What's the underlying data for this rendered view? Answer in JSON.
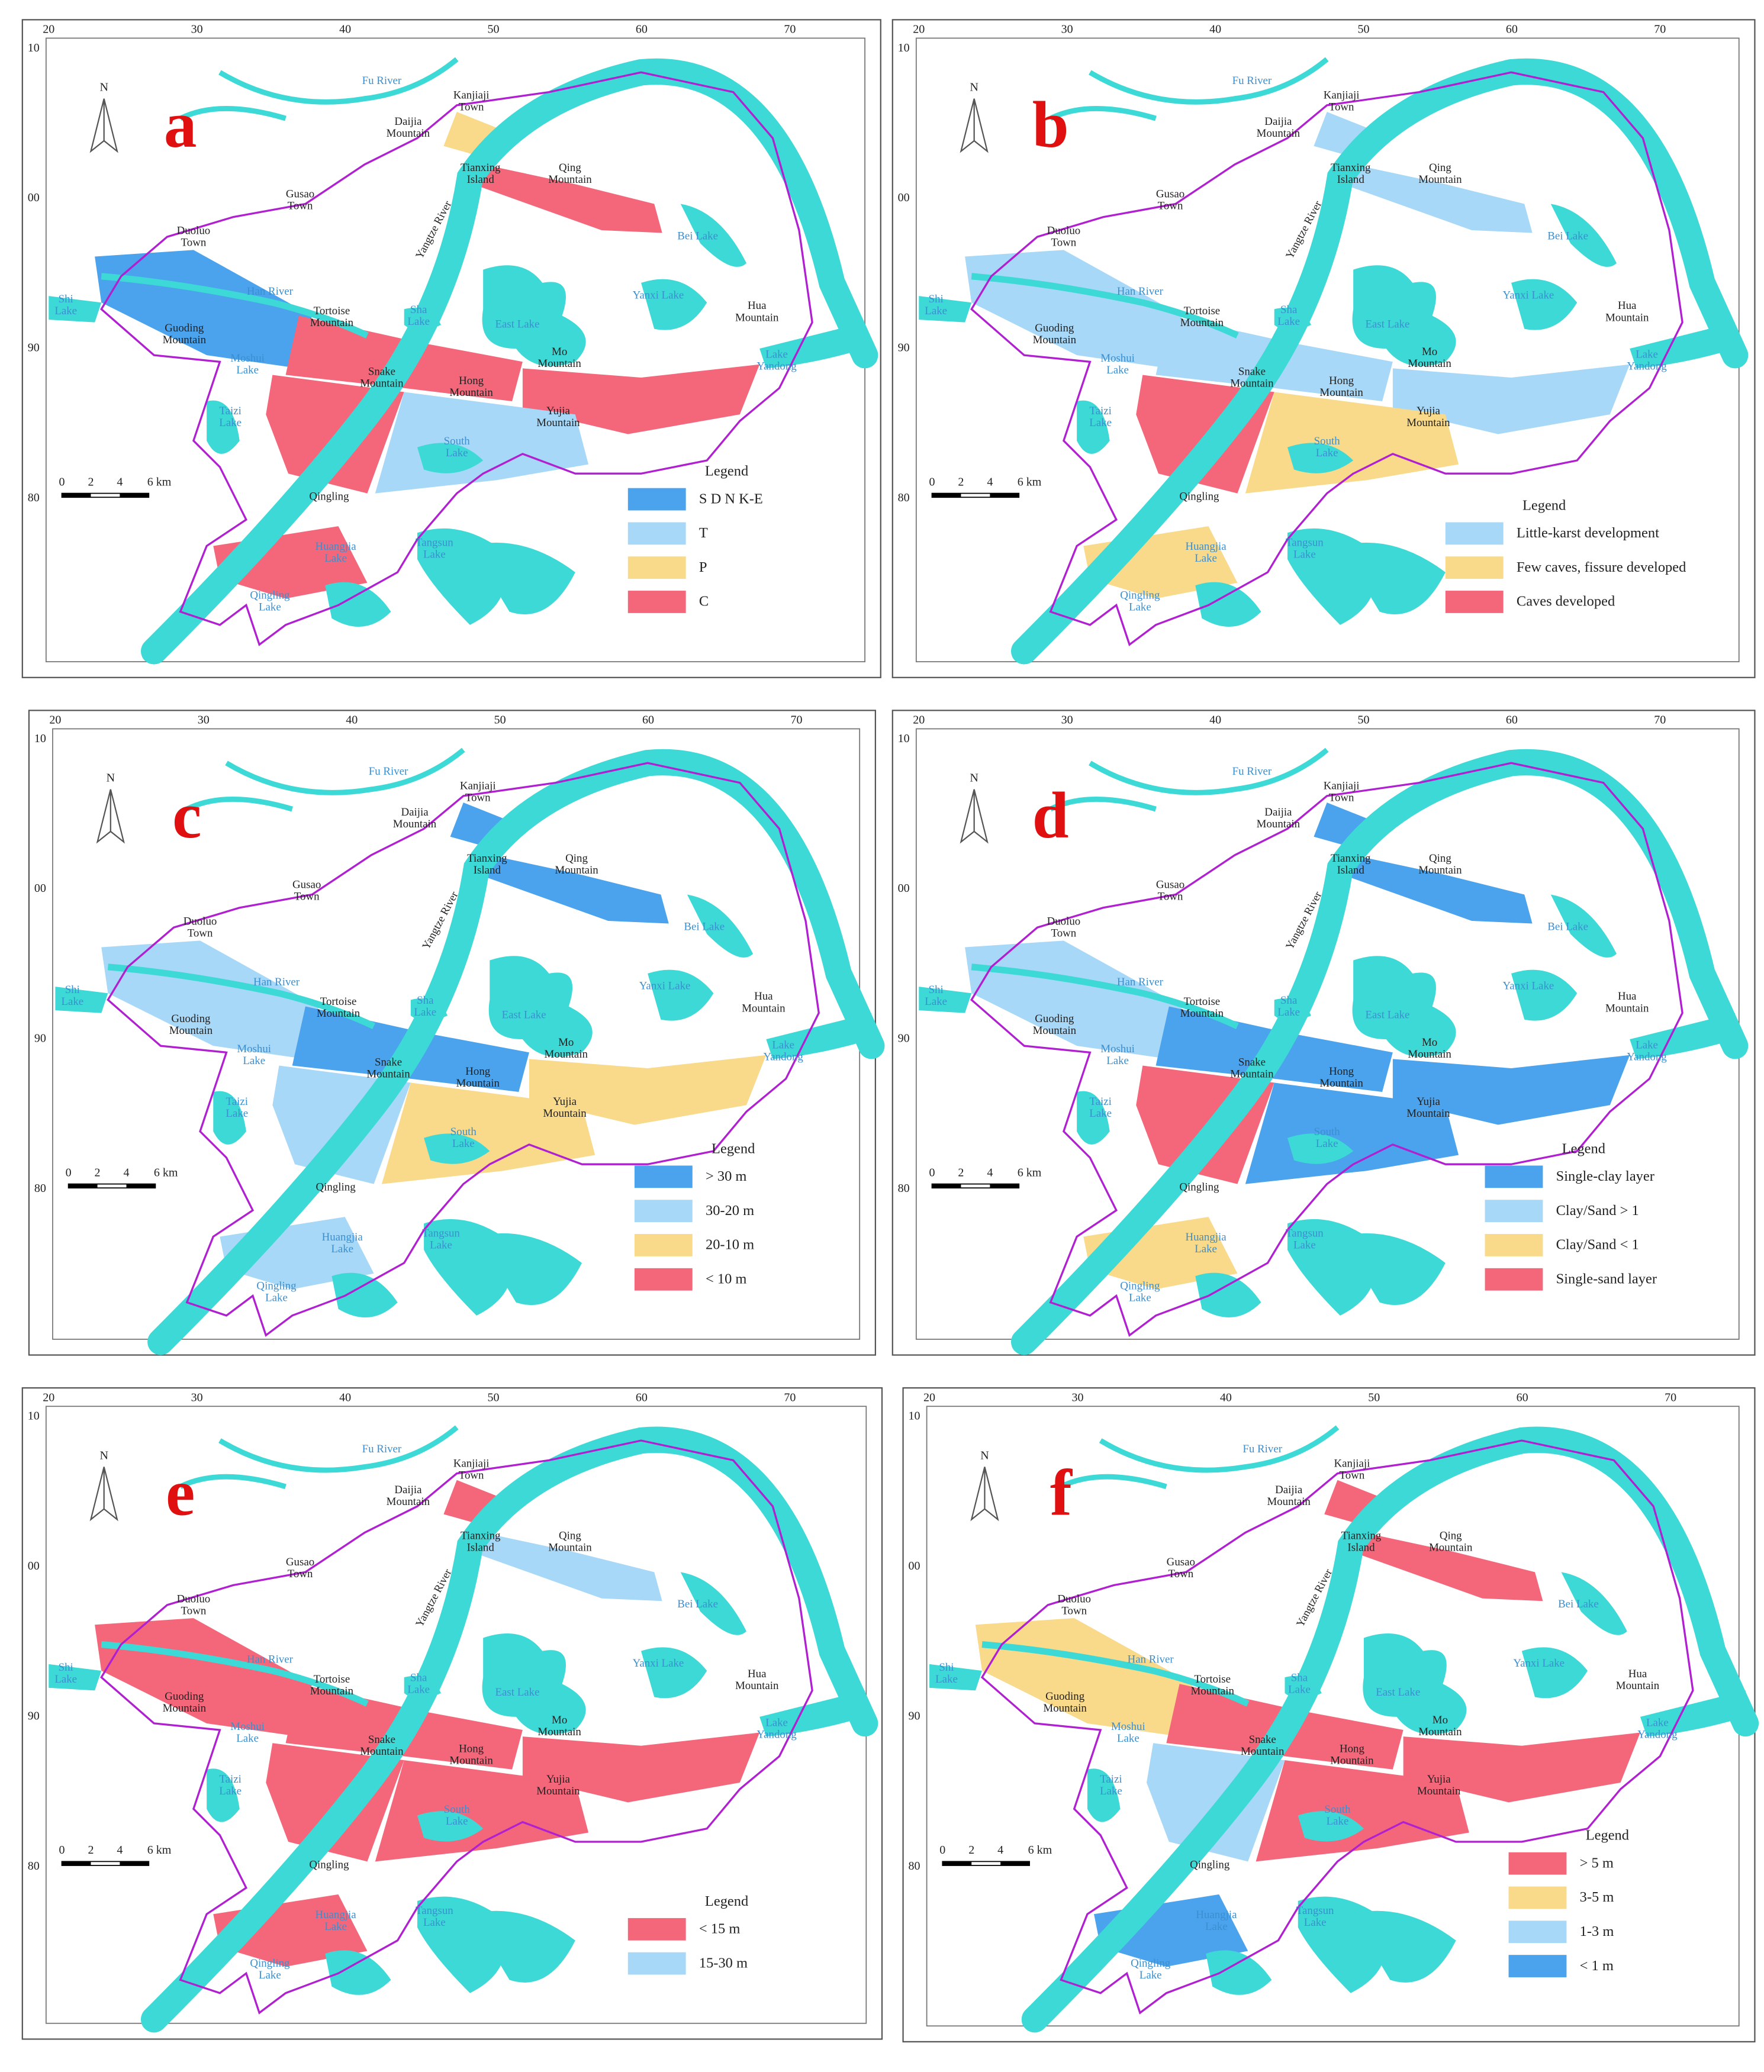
{
  "panels": [
    {
      "letter": "a",
      "legend": {
        "title": "Legend",
        "items": [
          {
            "label": "S D N K-E",
            "color": "#4aa3ec"
          },
          {
            "label": "T",
            "color": "#a8d8f8"
          },
          {
            "label": "P",
            "color": "#f9d98a"
          },
          {
            "label": "C",
            "color": "#f4677a"
          }
        ]
      }
    },
    {
      "letter": "b",
      "legend": {
        "title": "Legend",
        "items": [
          {
            "label": "Little-karst development",
            "color": "#a8d8f8"
          },
          {
            "label": "Few caves, fissure developed",
            "color": "#f9d98a"
          },
          {
            "label": "Caves developed",
            "color": "#f4677a"
          }
        ]
      }
    },
    {
      "letter": "c",
      "legend": {
        "title": "Legend",
        "items": [
          {
            "label": "> 30 m",
            "color": "#4aa3ec"
          },
          {
            "label": "30-20 m",
            "color": "#a8d8f8"
          },
          {
            "label": "20-10 m",
            "color": "#f9d98a"
          },
          {
            "label": "< 10 m",
            "color": "#f4677a"
          }
        ]
      }
    },
    {
      "letter": "d",
      "legend": {
        "title": "Legend",
        "items": [
          {
            "label": "Single-clay layer",
            "color": "#4aa3ec"
          },
          {
            "label": "Clay/Sand > 1",
            "color": "#a8d8f8"
          },
          {
            "label": "Clay/Sand < 1",
            "color": "#f9d98a"
          },
          {
            "label": "Single-sand layer",
            "color": "#f4677a"
          }
        ]
      }
    },
    {
      "letter": "e",
      "legend": {
        "title": "Legend",
        "items": [
          {
            "label": "< 15 m",
            "color": "#f4677a"
          },
          {
            "label": "15-30 m",
            "color": "#a8d8f8"
          }
        ]
      }
    },
    {
      "letter": "f",
      "legend": {
        "title": "Legend",
        "items": [
          {
            "label": "> 5 m",
            "color": "#f4677a"
          },
          {
            "label": "3-5 m",
            "color": "#f9d98a"
          },
          {
            "label": "1-3 m",
            "color": "#a8d8f8"
          },
          {
            "label": "< 1 m",
            "color": "#4aa3ec"
          }
        ]
      }
    }
  ],
  "map": {
    "north": "N",
    "xticks": [
      "20",
      "30",
      "40",
      "50",
      "60",
      "70"
    ],
    "yticks": [
      "10",
      "00",
      "90",
      "80"
    ],
    "scale": [
      "0",
      "2",
      "4",
      "6 km"
    ],
    "river": "Yangtze River",
    "places": [
      [
        "Fu River"
      ],
      [
        "Kanjiaji",
        "Town"
      ],
      [
        "Daijia",
        "Mountain"
      ],
      [
        "Tianxing",
        "Island"
      ],
      [
        "Qing",
        "Mountain"
      ],
      [
        "Gusao",
        "Town"
      ],
      [
        "Duoluo",
        "Town"
      ],
      [
        "Han River"
      ],
      [
        "Tortoise",
        "Mountain"
      ],
      [
        "Guoding",
        "Mountain"
      ],
      [
        "Shi",
        "Lake"
      ],
      [
        "Sha",
        "Lake"
      ],
      [
        "East Lake"
      ],
      [
        "Yanxi Lake"
      ],
      [
        "Hua",
        "Mountain"
      ],
      [
        "Bei Lake"
      ],
      [
        "Mo",
        "Mountain"
      ],
      [
        "Moshui",
        "Lake"
      ],
      [
        "Snake",
        "Mountain"
      ],
      [
        "Hong",
        "Mountain"
      ],
      [
        "Lake",
        "Yandong"
      ],
      [
        "Yujia",
        "Mountain"
      ],
      [
        "Taizi",
        "Lake"
      ],
      [
        "South",
        "Lake"
      ],
      [
        "Qingling"
      ],
      [
        "Tangsun",
        "Lake"
      ],
      [
        "Huangjia",
        "Lake"
      ],
      [
        "Qingling",
        "Lake"
      ]
    ]
  }
}
